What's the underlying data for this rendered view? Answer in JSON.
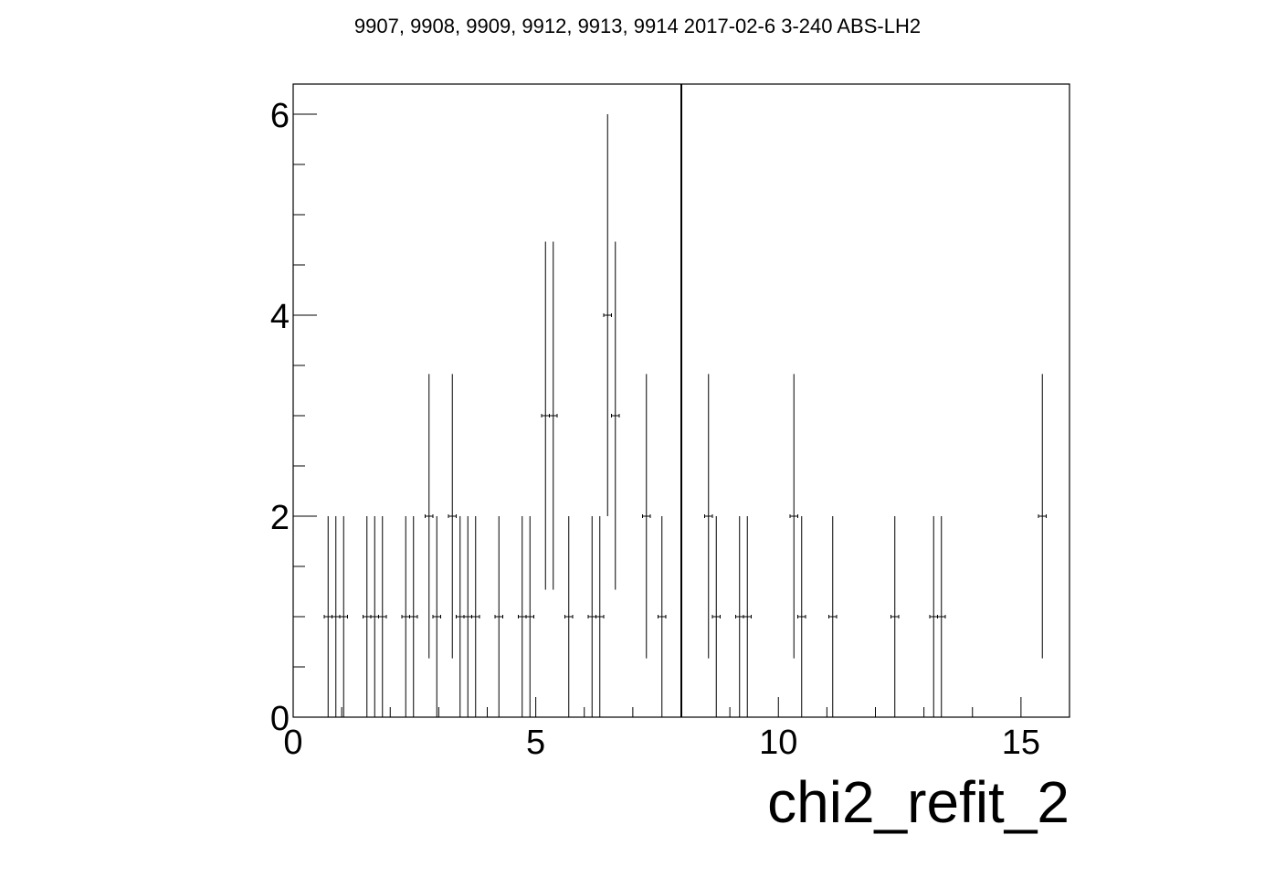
{
  "chart_data": {
    "type": "scatter",
    "title": "9907, 9908, 9909, 9912, 9913, 9914 2017-02-6 3-240 ABS-LH2",
    "xlabel": "chi2_refit_2",
    "ylabel": "",
    "xlim": [
      0,
      16
    ],
    "ylim": [
      0,
      6.3
    ],
    "x_ticks": [
      "0",
      "5",
      "10",
      "15"
    ],
    "y_ticks": [
      "0",
      "2",
      "4",
      "6"
    ],
    "grid": false,
    "cut_line_x": 8,
    "bin_width": 0.16,
    "series": [
      {
        "x": [
          0.72,
          0.88,
          1.04,
          1.52,
          1.68,
          1.84,
          2.32,
          2.48,
          2.8,
          2.96,
          3.28,
          3.44,
          3.6,
          3.76,
          4.24,
          4.72,
          4.88,
          5.2,
          5.36,
          5.68,
          6.16,
          6.32,
          6.48,
          6.64,
          7.28,
          7.6,
          8.56,
          8.72,
          9.2,
          9.36,
          10.32,
          10.48,
          11.12,
          12.4,
          13.2,
          13.36,
          15.44
        ],
        "y": [
          1,
          1,
          1,
          1,
          1,
          1,
          1,
          1,
          2,
          1,
          2,
          1,
          1,
          1,
          1,
          1,
          1,
          3,
          3,
          1,
          1,
          1,
          4,
          3,
          2,
          1,
          2,
          1,
          1,
          1,
          2,
          1,
          1,
          1,
          1,
          1,
          2
        ]
      }
    ]
  }
}
